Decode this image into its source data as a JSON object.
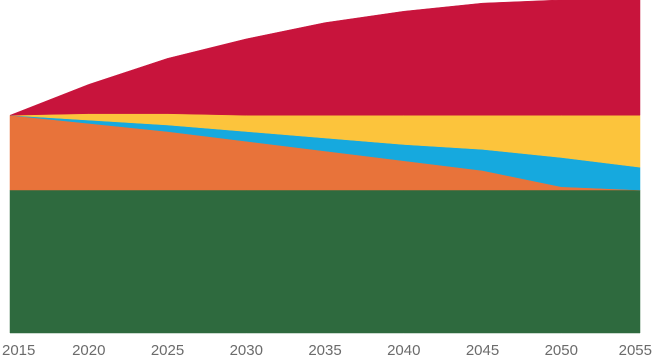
{
  "chart_data": {
    "type": "area",
    "stacked": true,
    "title": "",
    "xlabel": "",
    "ylabel": "",
    "grid": false,
    "legend": "none",
    "x": [
      2015,
      2020,
      2025,
      2030,
      2035,
      2040,
      2045,
      2050,
      2055
    ],
    "xlim": [
      2015,
      2055
    ],
    "ylim": [
      0,
      100
    ],
    "series": [
      {
        "key": "green",
        "color": "#2e6a3e",
        "values": [
          44,
          44,
          44,
          44,
          44,
          44,
          44,
          44,
          44
        ]
      },
      {
        "key": "orange",
        "color": "#e8733a",
        "values": [
          23,
          20.5,
          18,
          15,
          12,
          9,
          6,
          1,
          0
        ]
      },
      {
        "key": "blue",
        "color": "#16a9de",
        "values": [
          0,
          1,
          2,
          3,
          4,
          5,
          6.5,
          9,
          7
        ]
      },
      {
        "key": "yellow",
        "color": "#fcc43c",
        "values": [
          0,
          2,
          3.5,
          5,
          7,
          9,
          10.5,
          13,
          16
        ]
      },
      {
        "key": "red",
        "color": "#c8143c",
        "values": [
          0,
          9,
          17,
          23.5,
          28.5,
          32,
          34.5,
          35.5,
          35.5
        ]
      }
    ],
    "x_tick_labels": [
      "2015",
      "2020",
      "2025",
      "2030",
      "2035",
      "2040",
      "2045",
      "2050",
      "2055"
    ]
  }
}
